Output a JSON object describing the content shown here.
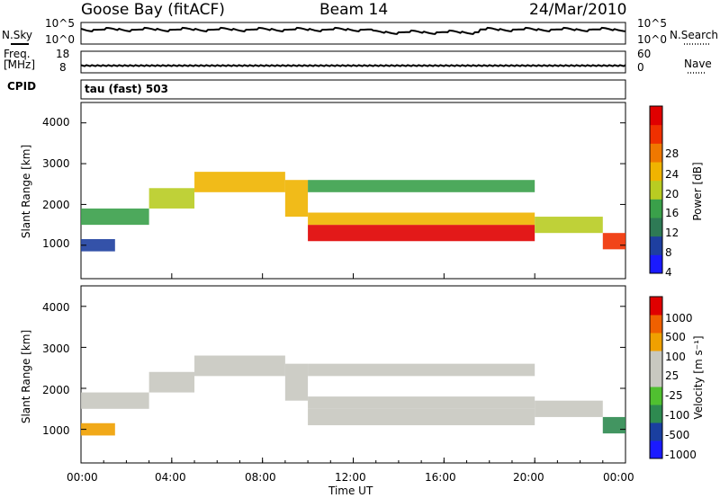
{
  "header": {
    "station": "Goose Bay (fitACF)",
    "beam": "Beam 14",
    "date": "24/Mar/2010"
  },
  "strips": {
    "nsky_label": "N.Sky",
    "nsearch_label": "N.Search",
    "left_top_tick": "10^5",
    "left_bottom_tick": "10^0",
    "right_top_tick": "10^5",
    "right_bottom_tick": "10^0",
    "freq_label_line1": "Freq.",
    "freq_label_line2": "[MHz]",
    "nave_label": "Nave",
    "freq_top_tick": "18",
    "freq_bottom_tick": "8",
    "nave_top_tick": "60",
    "nave_bottom_tick": "0",
    "cpid_label": "CPID",
    "cpid_value": "tau (fast) 503"
  },
  "colors": {
    "power_scale": [
      "#1a1aff",
      "#1e3fa0",
      "#2e7a55",
      "#3aa04a",
      "#b8cc22",
      "#f0b400",
      "#f07800",
      "#f03000",
      "#e00000"
    ],
    "velocity_scale": [
      "#e00000",
      "#f06000",
      "#f0a000",
      "#c8c8c0",
      "#c8c8c0",
      "#50c030",
      "#2e8a50",
      "#1a3fa0",
      "#1a1aff"
    ]
  },
  "chart_data": [
    {
      "type": "heatmap",
      "quantity": "Power",
      "ylabel": "Slant Range [km]",
      "xlabel": "",
      "ylim": [
        180,
        4500
      ],
      "y_ticks": [
        "1000",
        "2000",
        "3000",
        "4000"
      ],
      "colorbar_label": "Power [dB]",
      "colorbar_ticks": [
        "4",
        "8",
        "12",
        "16",
        "20",
        "24",
        "28"
      ],
      "bands": [
        {
          "t": [
            0,
            1.5
          ],
          "r": [
            850,
            1150
          ],
          "level": 1
        },
        {
          "t": [
            0,
            3
          ],
          "r": [
            1500,
            1900
          ],
          "level": 3
        },
        {
          "t": [
            3,
            5
          ],
          "r": [
            1900,
            2400
          ],
          "level": 4
        },
        {
          "t": [
            5,
            9
          ],
          "r": [
            2300,
            2800
          ],
          "level": 5
        },
        {
          "t": [
            9,
            10
          ],
          "r": [
            1700,
            2600
          ],
          "level": 5
        },
        {
          "t": [
            10,
            20
          ],
          "r": [
            1100,
            1500
          ],
          "level": 8
        },
        {
          "t": [
            10,
            20
          ],
          "r": [
            1500,
            1800
          ],
          "level": 5
        },
        {
          "t": [
            10,
            20
          ],
          "r": [
            2300,
            2600
          ],
          "level": 3
        },
        {
          "t": [
            20,
            23
          ],
          "r": [
            1300,
            1700
          ],
          "level": 4
        },
        {
          "t": [
            23,
            24
          ],
          "r": [
            900,
            1300
          ],
          "level": 7
        }
      ]
    },
    {
      "type": "heatmap",
      "quantity": "Velocity",
      "ylabel": "Slant Range [km]",
      "xlabel": "Time UT",
      "ylim": [
        180,
        4500
      ],
      "y_ticks": [
        "1000",
        "2000",
        "3000",
        "4000"
      ],
      "x_ticks": [
        "00:00",
        "04:00",
        "08:00",
        "12:00",
        "16:00",
        "20:00",
        "00:00"
      ],
      "colorbar_label": "Velocity [m s⁻¹]",
      "colorbar_ticks": [
        "1000",
        "500",
        "100",
        "25",
        "-25",
        "-100",
        "-500",
        "-1000"
      ],
      "bands": [
        {
          "t": [
            0,
            1.5
          ],
          "r": [
            850,
            1150
          ],
          "level": 2
        },
        {
          "t": [
            0,
            3
          ],
          "r": [
            1500,
            1900
          ],
          "level": 3
        },
        {
          "t": [
            3,
            5
          ],
          "r": [
            1900,
            2400
          ],
          "level": 3
        },
        {
          "t": [
            5,
            9
          ],
          "r": [
            2300,
            2800
          ],
          "level": 3
        },
        {
          "t": [
            9,
            10
          ],
          "r": [
            1700,
            2600
          ],
          "level": 3
        },
        {
          "t": [
            10,
            20
          ],
          "r": [
            1100,
            1500
          ],
          "level": 3
        },
        {
          "t": [
            10,
            20
          ],
          "r": [
            1500,
            1800
          ],
          "level": 3
        },
        {
          "t": [
            10,
            20
          ],
          "r": [
            2300,
            2600
          ],
          "level": 3
        },
        {
          "t": [
            20,
            23
          ],
          "r": [
            1300,
            1700
          ],
          "level": 4
        },
        {
          "t": [
            23,
            24
          ],
          "r": [
            900,
            1300
          ],
          "level": 6
        }
      ]
    }
  ]
}
